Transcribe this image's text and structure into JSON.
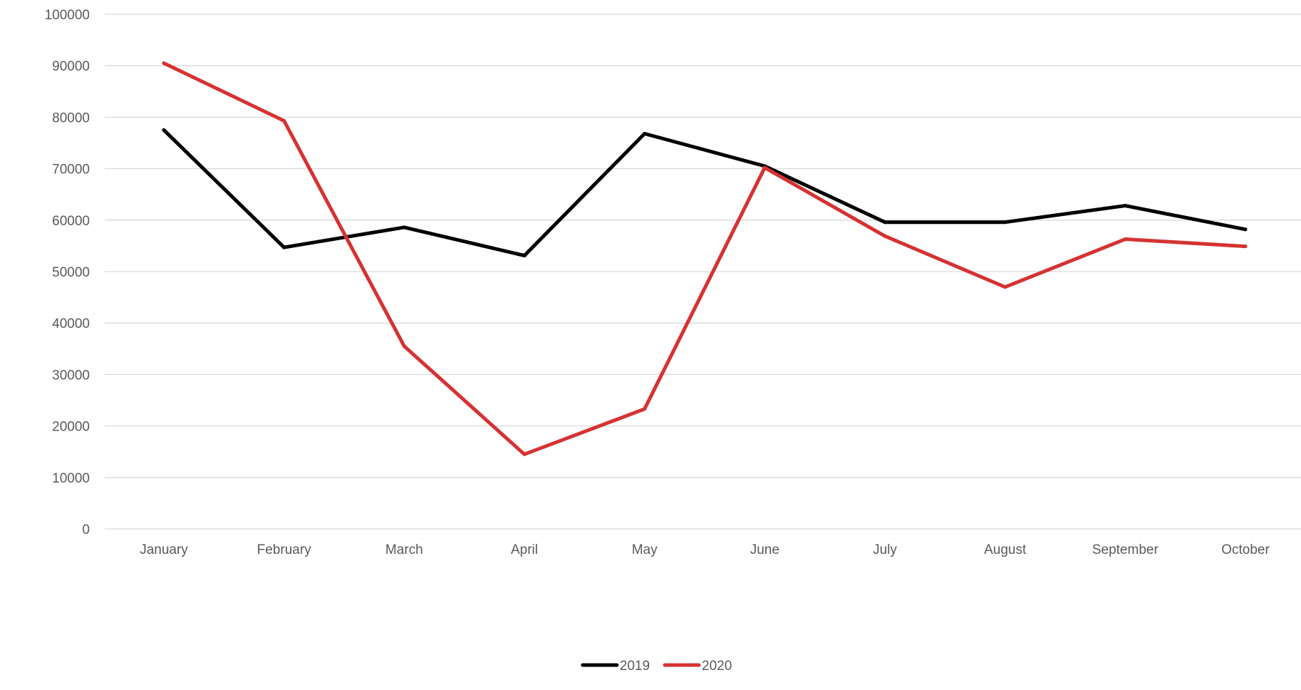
{
  "chart_data": {
    "type": "line",
    "title": "",
    "xlabel": "",
    "ylabel": "",
    "categories": [
      "January",
      "February",
      "March",
      "April",
      "May",
      "June",
      "July",
      "August",
      "September",
      "October"
    ],
    "y_ticks": [
      "0",
      "10000",
      "20000",
      "30000",
      "40000",
      "50000",
      "60000",
      "70000",
      "80000",
      "90000",
      "100000"
    ],
    "ylim": [
      0,
      100000
    ],
    "grid": true,
    "legend_position": "bottom",
    "series": [
      {
        "name": "2019",
        "color": "#000000",
        "values": [
          77500,
          54700,
          58600,
          53100,
          76800,
          70500,
          59600,
          59600,
          62800,
          58200
        ]
      },
      {
        "name": "2020",
        "color": "#d63232",
        "values": [
          90500,
          79300,
          35500,
          14500,
          23300,
          70200,
          56900,
          47000,
          56300,
          54900
        ]
      }
    ]
  }
}
